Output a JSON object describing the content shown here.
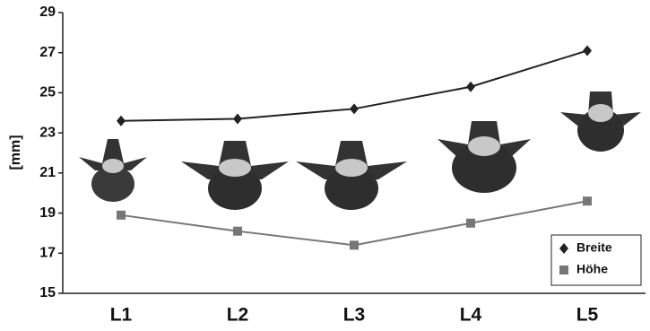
{
  "chart_data": {
    "type": "line",
    "y_label": "[mm]",
    "categories": [
      "L1",
      "L2",
      "L3",
      "L4",
      "L5"
    ],
    "series": [
      {
        "name": "Breite",
        "color": "#222222",
        "marker": "diamond",
        "values": [
          23.6,
          23.7,
          24.2,
          25.3,
          27.1
        ]
      },
      {
        "name": "Höhe",
        "color": "#777777",
        "marker": "square",
        "values": [
          18.9,
          18.1,
          17.4,
          18.5,
          19.6
        ]
      }
    ],
    "ylim": [
      15,
      29
    ],
    "yticks": [
      15,
      17,
      19,
      21,
      23,
      25,
      27,
      29
    ],
    "legend": "lower right"
  }
}
